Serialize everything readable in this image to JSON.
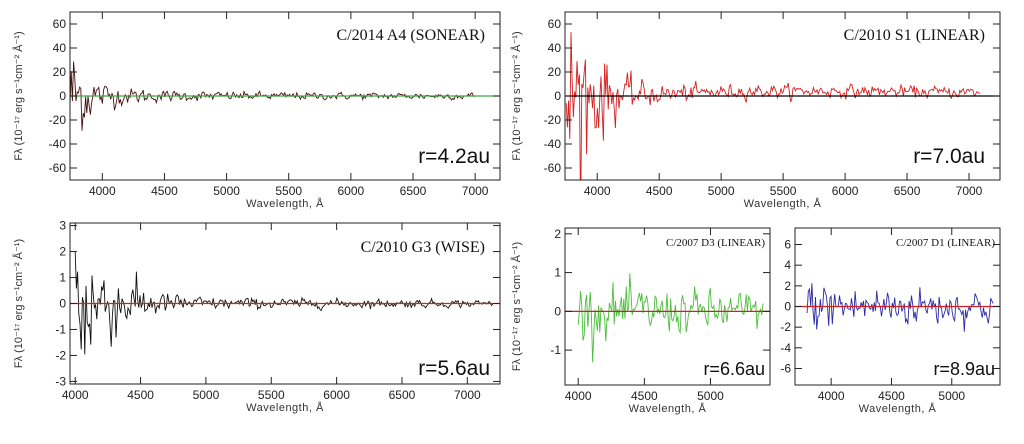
{
  "chart_data": [
    {
      "id": "p1",
      "type": "line",
      "title": "C/2014 A4 (SONEAR)",
      "r_label": "r=4.2au",
      "xlabel": "Wavelength, Å",
      "ylabel": "Fλ (10⁻¹⁷ erg s⁻¹cm⁻² Å⁻¹)",
      "xlim": [
        3740,
        7200
      ],
      "ylim": [
        -70,
        70
      ],
      "xticks": [
        4000,
        4500,
        5000,
        5500,
        6000,
        6500,
        7000
      ],
      "yticks": [
        -60,
        -40,
        -20,
        0,
        20,
        40,
        60
      ],
      "colors": {
        "series": "#4a1010",
        "zero_line": "#3aa845"
      },
      "zero_line": true,
      "series": [
        {
          "x_start": 3740,
          "x_end": 7000,
          "envelope_x": [
            3740,
            3800,
            3900,
            4000,
            4200,
            4500,
            5000,
            6000,
            7000
          ],
          "envelope_amp": [
            45,
            32,
            18,
            10,
            6,
            4,
            3,
            2.5,
            2.5
          ]
        }
      ]
    },
    {
      "id": "p2",
      "type": "line",
      "title": "C/2010 S1 (LINEAR)",
      "r_label": "r=7.0au",
      "xlabel": "Wavelength, Å",
      "ylabel": "Fλ (10⁻¹⁷ erg s⁻¹cm⁻² Å⁻¹)",
      "xlim": [
        3740,
        7250
      ],
      "ylim": [
        -70,
        70
      ],
      "xticks": [
        4000,
        4500,
        5000,
        5500,
        6000,
        6500,
        7000
      ],
      "yticks": [
        -60,
        -40,
        -20,
        0,
        20,
        40,
        60
      ],
      "colors": {
        "series": "#d42020",
        "zero_line": "#000000"
      },
      "zero_line": true,
      "series": [
        {
          "x_start": 3750,
          "x_end": 7100,
          "envelope_x": [
            3750,
            3850,
            4000,
            4200,
            4500,
            5000,
            6000,
            7100
          ],
          "envelope_amp": [
            70,
            60,
            35,
            14,
            7,
            5,
            4.5,
            4
          ],
          "offset_x": [
            3750,
            4500,
            5200,
            6000,
            7100
          ],
          "offset_y": [
            0,
            1.5,
            4,
            4,
            3
          ]
        }
      ]
    },
    {
      "id": "p3",
      "type": "line",
      "title": "C/2010 G3 (WISE)",
      "r_label": "r=5.6au",
      "xlabel": "Wavelength, Å",
      "ylabel": "Fλ (10⁻¹⁷ erg s⁻¹cm⁻² Å⁻¹)",
      "xlim": [
        3960,
        7250
      ],
      "ylim": [
        -3.1,
        3.1
      ],
      "xticks": [
        4000,
        4500,
        5000,
        5500,
        6000,
        6500,
        7000
      ],
      "yticks": [
        -3,
        -2,
        -1,
        0,
        1,
        2,
        3
      ],
      "colors": {
        "series": "#111111",
        "zero_line": "#d42020"
      },
      "zero_line": true,
      "series": [
        {
          "x_start": 4000,
          "x_end": 7200,
          "envelope_x": [
            4000,
            4100,
            4200,
            4400,
            4700,
            5000,
            6000,
            7200
          ],
          "envelope_amp": [
            3.0,
            2.4,
            1.6,
            0.8,
            0.35,
            0.2,
            0.15,
            0.12
          ]
        }
      ]
    },
    {
      "id": "p4",
      "type": "line",
      "title": "C/2007 D3 (LINEAR)",
      "r_label": "r=6.6au",
      "xlabel": "Wavelength, Å",
      "ylabel": "Fλ (10⁻¹⁷ erg s⁻¹cm⁻² Å⁻¹)",
      "xlim": [
        3900,
        5450
      ],
      "ylim": [
        -1.9,
        2.15
      ],
      "xticks": [
        4000,
        4500,
        5000
      ],
      "yticks": [
        -1,
        0,
        1,
        2
      ],
      "colors": {
        "series": "#4cbf3c",
        "zero_line": "#d42020"
      },
      "zero_line": true,
      "series": [
        {
          "x_start": 4000,
          "x_end": 5400,
          "envelope_x": [
            4000,
            4400,
            5000,
            5400
          ],
          "envelope_amp": [
            0.6,
            0.55,
            0.45,
            0.45
          ]
        }
      ]
    },
    {
      "id": "p5",
      "type": "line",
      "title": "C/2007 D1 (LINEAR)",
      "r_label": "r=8.9au",
      "xlabel": "Wavelength, Å",
      "ylabel": "",
      "xlim": [
        3700,
        5400
      ],
      "ylim": [
        -7.6,
        7.6
      ],
      "xticks": [
        4000,
        4500,
        5000
      ],
      "yticks": [
        -6,
        -4,
        -2,
        0,
        2,
        4,
        6
      ],
      "colors": {
        "series": "#2a2aa6",
        "zero_line": "#d42020"
      },
      "zero_line": true,
      "series": [
        {
          "x_start": 3800,
          "x_end": 5350,
          "envelope_x": [
            3800,
            4200,
            5000,
            5350
          ],
          "envelope_amp": [
            2.2,
            1.8,
            1.5,
            1.5
          ]
        }
      ]
    }
  ]
}
